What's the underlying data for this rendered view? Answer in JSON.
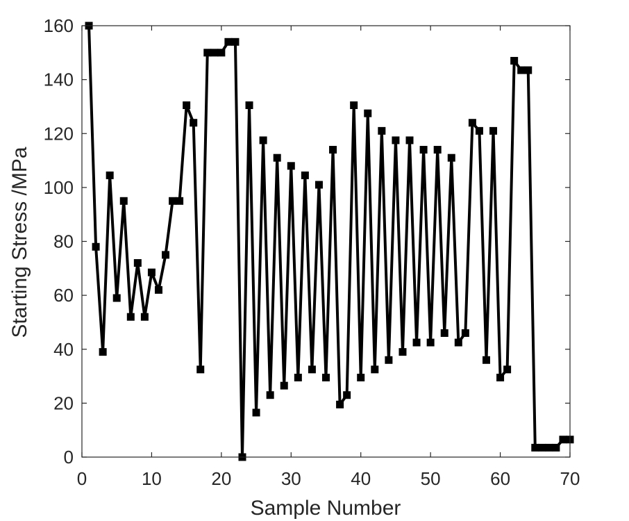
{
  "chart_data": {
    "type": "line",
    "title": "",
    "xlabel": "Sample Number",
    "ylabel": "Starting Stress /MPa",
    "xlim": [
      0,
      70
    ],
    "ylim": [
      0,
      160
    ],
    "xticks": [
      0,
      10,
      20,
      30,
      40,
      50,
      60,
      70
    ],
    "yticks": [
      0,
      20,
      40,
      60,
      80,
      100,
      120,
      140,
      160
    ],
    "grid": false,
    "line_color": "#000000",
    "marker": "square",
    "series": [
      {
        "x": [
          1,
          2,
          3,
          4,
          5,
          6,
          7,
          8,
          9,
          10,
          11,
          12,
          13,
          14,
          15,
          16,
          17,
          18,
          19,
          20,
          21,
          22,
          23,
          24,
          25,
          26,
          27,
          28,
          29,
          30,
          31,
          32,
          33,
          34,
          35,
          36,
          37,
          38,
          39,
          40,
          41,
          42,
          43,
          44,
          45,
          46,
          47,
          48,
          49,
          50,
          51,
          52,
          53,
          54,
          55,
          56,
          57,
          58,
          59,
          60,
          61,
          62,
          63,
          64,
          65,
          66,
          67,
          68,
          69,
          70
        ],
        "values": [
          160,
          78,
          39,
          104.5,
          59,
          95,
          52,
          72,
          52,
          68.5,
          62,
          75,
          95,
          95,
          130.5,
          124,
          32.5,
          150,
          150,
          150,
          154,
          154,
          0,
          130.5,
          16.5,
          117.5,
          23,
          111,
          26.5,
          108,
          29.5,
          104.5,
          32.5,
          101,
          29.5,
          114,
          19.5,
          23,
          130.5,
          29.5,
          127.5,
          32.5,
          121,
          36,
          117.5,
          39,
          117.5,
          42.5,
          114,
          42.5,
          114,
          46,
          111,
          42.5,
          46,
          124,
          121,
          36,
          121,
          29.5,
          32.5,
          147,
          143.5,
          143.5,
          3.5,
          3.5,
          3.5,
          3.5,
          6.5,
          6.5
        ]
      }
    ]
  }
}
